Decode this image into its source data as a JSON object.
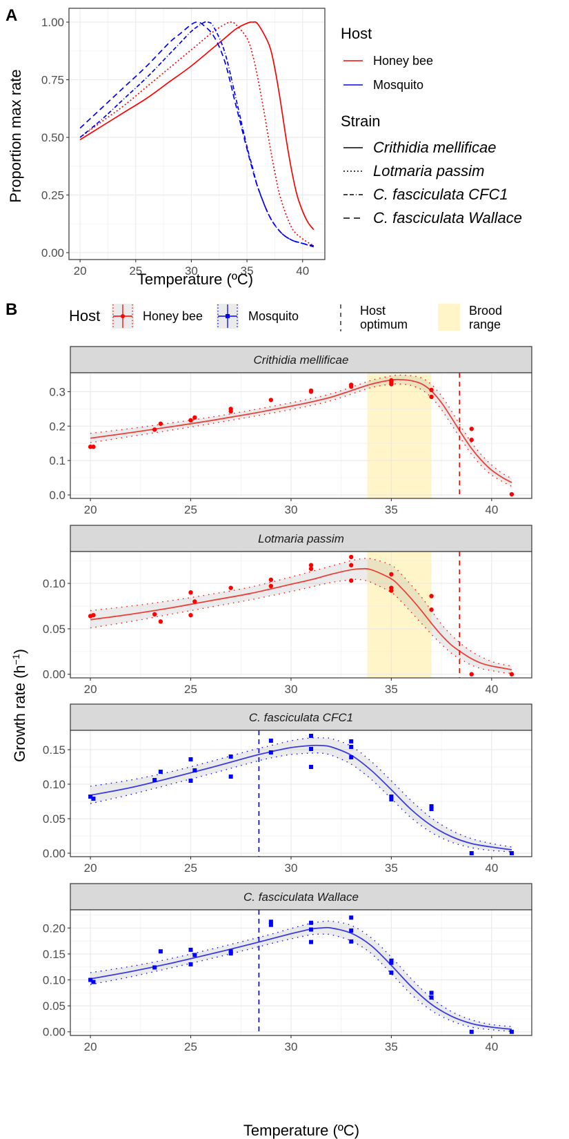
{
  "panel_labels": {
    "a": "A",
    "b": "B"
  },
  "chart_data": [
    {
      "id": "panel-a",
      "type": "line",
      "title": "",
      "xlabel": "Temperature (ºC)",
      "ylabel": "Proportion max rate",
      "xlim": [
        19,
        42
      ],
      "ylim": [
        -0.03,
        1.06
      ],
      "xticks": [
        20,
        25,
        30,
        35,
        40
      ],
      "xtick_labels": [
        "20",
        "25",
        "30",
        "35",
        "40"
      ],
      "yticks": [
        0,
        0.25,
        0.5,
        0.75,
        1.0
      ],
      "ytick_labels": [
        "0.00",
        "0.25",
        "0.50",
        "0.75",
        "1.00"
      ],
      "grid": true,
      "legend": {
        "placement": "right",
        "host_title": "Host",
        "host_entries": [
          {
            "label": "Honey bee",
            "color": "#ff0000"
          },
          {
            "label": "Mosquito",
            "color": "#0000ff"
          }
        ],
        "strain_title": "Strain",
        "strain_entries": [
          {
            "label": "Crithidia mellificae",
            "dash": "solid"
          },
          {
            "label": "Lotmaria passim",
            "dash": "dotted"
          },
          {
            "label": "C. fasciculata CFC1",
            "dash": "dashed"
          },
          {
            "label": "C. fasciculata Wallace",
            "dash": "longdash"
          }
        ]
      },
      "series": [
        {
          "name": "Crithidia mellificae",
          "host": "Honey bee",
          "color": "#ff0000",
          "dash": "solid",
          "x": [
            20,
            22,
            24,
            26,
            28,
            30,
            32,
            33,
            34,
            35,
            35.5,
            36,
            37,
            37.5,
            38,
            38.5,
            39,
            39.5,
            40,
            40.5,
            41
          ],
          "y": [
            0.49,
            0.55,
            0.61,
            0.67,
            0.74,
            0.81,
            0.89,
            0.93,
            0.97,
            0.995,
            1.0,
            0.99,
            0.9,
            0.8,
            0.66,
            0.5,
            0.36,
            0.25,
            0.18,
            0.13,
            0.1
          ]
        },
        {
          "name": "Lotmaria passim",
          "host": "Honey bee",
          "color": "#ff0000",
          "dash": "dotted",
          "x": [
            20,
            22,
            24,
            26,
            28,
            30,
            31,
            32,
            33,
            33.5,
            34,
            35,
            35.5,
            36,
            36.5,
            37,
            37.5,
            38,
            39,
            40,
            41
          ],
          "y": [
            0.5,
            0.57,
            0.64,
            0.72,
            0.8,
            0.88,
            0.92,
            0.96,
            0.99,
            1.0,
            0.99,
            0.93,
            0.86,
            0.75,
            0.62,
            0.48,
            0.35,
            0.24,
            0.11,
            0.06,
            0.03
          ]
        },
        {
          "name": "C. fasciculata CFC1",
          "host": "Mosquito",
          "color": "#0000ff",
          "dash": "dashed",
          "x": [
            20,
            22,
            24,
            26,
            28,
            29,
            30,
            31,
            31.5,
            32,
            33,
            34,
            35,
            35.5,
            36,
            37,
            38,
            39,
            40,
            41
          ],
          "y": [
            0.5,
            0.58,
            0.67,
            0.76,
            0.86,
            0.91,
            0.96,
            0.995,
            1.0,
            0.98,
            0.87,
            0.67,
            0.46,
            0.37,
            0.28,
            0.16,
            0.09,
            0.055,
            0.04,
            0.025
          ]
        },
        {
          "name": "C. fasciculata Wallace",
          "host": "Mosquito",
          "color": "#0000ff",
          "dash": "longdash",
          "x": [
            20,
            22,
            24,
            26,
            28,
            29,
            30,
            30.5,
            31,
            32,
            33,
            34,
            35,
            35.5,
            36,
            37,
            38,
            39,
            40,
            41
          ],
          "y": [
            0.54,
            0.63,
            0.72,
            0.81,
            0.91,
            0.95,
            0.99,
            1.0,
            0.99,
            0.94,
            0.83,
            0.64,
            0.45,
            0.36,
            0.28,
            0.16,
            0.09,
            0.055,
            0.04,
            0.03
          ]
        }
      ]
    },
    {
      "id": "panel-b",
      "type": "scatter",
      "title": "",
      "xlabel": "Temperature (ºC)",
      "ylabel": "Growth rate (h",
      "ylabel_sup": "−1",
      "ylabel_end": ")",
      "xlim": [
        19,
        42
      ],
      "xticks": [
        20,
        25,
        30,
        35,
        40
      ],
      "xtick_labels": [
        "20",
        "25",
        "30",
        "35",
        "40"
      ],
      "grid": true,
      "legend": {
        "placement": "top",
        "host_title": "Host",
        "host_entries": [
          {
            "label": "Honey bee",
            "color": "#ff0000",
            "shape": "circle"
          },
          {
            "label": "Mosquito",
            "color": "#0000ff",
            "shape": "square"
          }
        ],
        "optimum_label_1": "Host",
        "optimum_label_2": "optimum",
        "brood_label_1": "Brood",
        "brood_label_2": "range",
        "brood_color": "#fff5c9"
      },
      "facets": [
        {
          "strip": "Crithidia mellificae",
          "host": "Honey bee",
          "color": "#ff0000",
          "fit_color": "#e8413a",
          "shape": "circle",
          "ylim": [
            -0.01,
            0.355
          ],
          "yticks": [
            0.0,
            0.1,
            0.2,
            0.3
          ],
          "ytick_labels": [
            "0.0",
            "0.1",
            "0.2",
            "0.3"
          ],
          "host_optimum": 38.4,
          "brood_range": [
            33.8,
            37.0
          ],
          "fit": {
            "x": [
              20,
              22,
              24,
              26,
              28,
              30,
              31,
              32,
              33,
              34,
              35,
              35.5,
              36,
              36.5,
              37,
              37.5,
              38,
              38.5,
              39,
              39.5,
              40,
              40.5,
              41
            ],
            "y": [
              0.165,
              0.181,
              0.198,
              0.216,
              0.236,
              0.258,
              0.27,
              0.284,
              0.303,
              0.322,
              0.334,
              0.335,
              0.332,
              0.323,
              0.302,
              0.268,
              0.224,
              0.178,
              0.135,
              0.1,
              0.072,
              0.052,
              0.036
            ],
            "lower": [
              0.152,
              0.17,
              0.188,
              0.207,
              0.227,
              0.248,
              0.26,
              0.274,
              0.293,
              0.312,
              0.322,
              0.322,
              0.318,
              0.306,
              0.283,
              0.248,
              0.204,
              0.16,
              0.118,
              0.084,
              0.058,
              0.04,
              0.025
            ],
            "upper": [
              0.179,
              0.193,
              0.209,
              0.226,
              0.246,
              0.268,
              0.28,
              0.294,
              0.313,
              0.333,
              0.346,
              0.348,
              0.346,
              0.34,
              0.321,
              0.288,
              0.244,
              0.196,
              0.152,
              0.116,
              0.087,
              0.064,
              0.048
            ]
          },
          "points": {
            "x": [
              20,
              20.15,
              23.2,
              23.5,
              25,
              25.2,
              27,
              27,
              29,
              31,
              31,
              33,
              33,
              35,
              35,
              35,
              37,
              37,
              39,
              39,
              41
            ],
            "y": [
              0.14,
              0.14,
              0.19,
              0.207,
              0.217,
              0.225,
              0.25,
              0.243,
              0.276,
              0.3,
              0.303,
              0.315,
              0.32,
              0.322,
              0.328,
              0.333,
              0.305,
              0.285,
              0.192,
              0.16,
              0.002
            ]
          }
        },
        {
          "strip": "Lotmaria passim",
          "host": "Honey bee",
          "color": "#ff0000",
          "fit_color": "#e8413a",
          "shape": "circle",
          "ylim": [
            -0.004,
            0.135
          ],
          "yticks": [
            0.0,
            0.05,
            0.1
          ],
          "ytick_labels": [
            "0.00",
            "0.05",
            "0.10"
          ],
          "host_optimum": 38.4,
          "brood_range": [
            33.8,
            37.0
          ],
          "fit": {
            "x": [
              20,
              22,
              24,
              26,
              28,
              30,
              31,
              32,
              33,
              33.5,
              34,
              35,
              35.5,
              36,
              36.5,
              37,
              37.5,
              38,
              38.5,
              39,
              39.5,
              40,
              40.5,
              41
            ],
            "y": [
              0.06,
              0.066,
              0.073,
              0.081,
              0.089,
              0.099,
              0.104,
              0.11,
              0.115,
              0.116,
              0.115,
              0.105,
              0.095,
              0.083,
              0.07,
              0.056,
              0.043,
              0.032,
              0.024,
              0.017,
              0.012,
              0.009,
              0.007,
              0.005
            ],
            "lower": [
              0.051,
              0.058,
              0.066,
              0.074,
              0.082,
              0.091,
              0.096,
              0.101,
              0.104,
              0.104,
              0.101,
              0.09,
              0.08,
              0.068,
              0.056,
              0.044,
              0.033,
              0.023,
              0.016,
              0.01,
              0.006,
              0.004,
              0.002,
              0.001
            ],
            "upper": [
              0.07,
              0.075,
              0.081,
              0.088,
              0.096,
              0.107,
              0.113,
              0.119,
              0.125,
              0.127,
              0.127,
              0.12,
              0.11,
              0.098,
              0.085,
              0.07,
              0.055,
              0.043,
              0.033,
              0.025,
              0.019,
              0.014,
              0.011,
              0.009
            ]
          },
          "points": {
            "x": [
              20,
              20.15,
              23.2,
              23.5,
              25,
              25,
              25.2,
              27,
              29,
              29,
              31,
              31,
              33,
              33,
              33,
              35,
              35,
              35,
              37,
              37,
              39,
              41
            ],
            "y": [
              0.064,
              0.065,
              0.066,
              0.058,
              0.09,
              0.065,
              0.08,
              0.095,
              0.104,
              0.097,
              0.116,
              0.12,
              0.129,
              0.12,
              0.103,
              0.11,
              0.095,
              0.092,
              0.086,
              0.071,
              0.0,
              0.0
            ]
          }
        },
        {
          "strip": "C. fasciculata CFC1",
          "host": "Mosquito",
          "color": "#0000ff",
          "fit_color": "#3a3ae0",
          "shape": "square",
          "ylim": [
            -0.005,
            0.178
          ],
          "yticks": [
            0.0,
            0.05,
            0.1,
            0.15
          ],
          "ytick_labels": [
            "0.00",
            "0.05",
            "0.10",
            "0.15"
          ],
          "host_optimum": 28.4,
          "brood_range": null,
          "fit": {
            "x": [
              20,
              22,
              24,
              26,
              28,
              29,
              30,
              31,
              31.5,
              32,
              33,
              34,
              35,
              36,
              37,
              38,
              39,
              40,
              41
            ],
            "y": [
              0.084,
              0.095,
              0.109,
              0.124,
              0.14,
              0.147,
              0.153,
              0.156,
              0.156,
              0.154,
              0.142,
              0.12,
              0.092,
              0.063,
              0.04,
              0.024,
              0.014,
              0.009,
              0.005
            ],
            "lower": [
              0.072,
              0.085,
              0.1,
              0.115,
              0.131,
              0.138,
              0.143,
              0.145,
              0.145,
              0.142,
              0.129,
              0.107,
              0.079,
              0.051,
              0.03,
              0.016,
              0.008,
              0.004,
              0.002
            ],
            "upper": [
              0.097,
              0.106,
              0.118,
              0.133,
              0.149,
              0.156,
              0.163,
              0.167,
              0.167,
              0.166,
              0.155,
              0.133,
              0.105,
              0.076,
              0.051,
              0.033,
              0.021,
              0.014,
              0.009
            ]
          },
          "points": {
            "x": [
              20,
              20.15,
              23.2,
              23.5,
              25,
              25,
              25.2,
              27,
              27,
              29,
              29,
              31,
              31,
              31,
              33,
              33,
              33,
              35,
              35,
              37,
              37,
              39,
              41
            ],
            "y": [
              0.082,
              0.079,
              0.106,
              0.118,
              0.136,
              0.105,
              0.12,
              0.14,
              0.111,
              0.163,
              0.146,
              0.17,
              0.151,
              0.125,
              0.162,
              0.154,
              0.139,
              0.082,
              0.078,
              0.068,
              0.064,
              0.0,
              0.0
            ]
          }
        },
        {
          "strip": "C. fasciculata Wallace",
          "host": "Mosquito",
          "color": "#0000ff",
          "fit_color": "#3a3ae0",
          "shape": "square",
          "ylim": [
            -0.007,
            0.235
          ],
          "yticks": [
            0.0,
            0.05,
            0.1,
            0.15,
            0.2
          ],
          "ytick_labels": [
            "0.00",
            "0.05",
            "0.10",
            "0.15",
            "0.20"
          ],
          "host_optimum": 28.4,
          "brood_range": null,
          "fit": {
            "x": [
              20,
              22,
              24,
              26,
              28,
              29,
              30,
              31,
              31.5,
              32,
              33,
              34,
              35,
              36,
              37,
              38,
              39,
              40,
              41
            ],
            "y": [
              0.102,
              0.116,
              0.132,
              0.15,
              0.169,
              0.179,
              0.189,
              0.198,
              0.2,
              0.2,
              0.19,
              0.166,
              0.128,
              0.087,
              0.053,
              0.03,
              0.016,
              0.009,
              0.005
            ],
            "lower": [
              0.091,
              0.106,
              0.123,
              0.141,
              0.16,
              0.17,
              0.179,
              0.187,
              0.188,
              0.187,
              0.175,
              0.151,
              0.112,
              0.072,
              0.041,
              0.021,
              0.009,
              0.004,
              0.001
            ],
            "upper": [
              0.114,
              0.126,
              0.141,
              0.159,
              0.178,
              0.188,
              0.199,
              0.209,
              0.212,
              0.213,
              0.205,
              0.181,
              0.144,
              0.102,
              0.065,
              0.039,
              0.023,
              0.014,
              0.01
            ]
          },
          "points": {
            "x": [
              20,
              20.15,
              23.2,
              23.5,
              25,
              25,
              25.2,
              27,
              27,
              29,
              29,
              31,
              31,
              31,
              33,
              33,
              33,
              35,
              35,
              35,
              37,
              37,
              39,
              41
            ],
            "y": [
              0.1,
              0.096,
              0.124,
              0.155,
              0.158,
              0.13,
              0.148,
              0.155,
              0.151,
              0.212,
              0.206,
              0.21,
              0.197,
              0.173,
              0.22,
              0.195,
              0.174,
              0.137,
              0.133,
              0.114,
              0.075,
              0.066,
              0.0,
              0.0
            ]
          }
        }
      ]
    }
  ]
}
